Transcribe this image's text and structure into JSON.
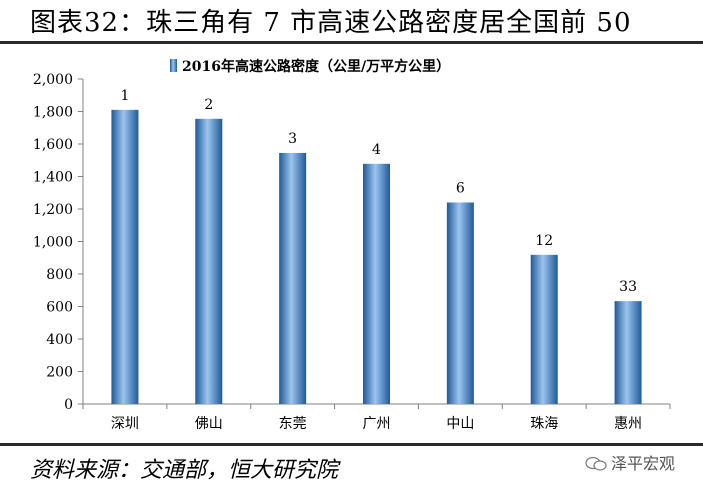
{
  "header": {
    "title": "图表32：珠三角有 7 市高速公路密度居全国前 50"
  },
  "footer": {
    "source": "资料来源：交通部，恒大研究院",
    "watermark": "泽平宏观"
  },
  "colors": {
    "bar": "#3a7dc0",
    "bar_light": "#9cc5ee",
    "bar_dark": "#1f5a99",
    "rule": "#2a2a2a"
  },
  "chart_data": {
    "type": "bar",
    "categories": [
      "深圳",
      "佛山",
      "东莞",
      "广州",
      "中山",
      "珠海",
      "惠州"
    ],
    "series": [
      {
        "name": "2016年高速公路密度（公里/万平方公里）",
        "values": [
          1810,
          1755,
          1545,
          1478,
          1240,
          918,
          633
        ]
      }
    ],
    "data_labels": [
      "1",
      "2",
      "3",
      "4",
      "6",
      "12",
      "33"
    ],
    "ylim": [
      0,
      2000
    ],
    "yticks": [
      0,
      200,
      400,
      600,
      800,
      1000,
      1200,
      1400,
      1600,
      1800,
      2000
    ],
    "ytick_labels": [
      "0",
      "200",
      "400",
      "600",
      "800",
      "1,000",
      "1,200",
      "1,400",
      "1,600",
      "1,800",
      "2,000"
    ],
    "legend_position": "top-center",
    "grid": false
  }
}
